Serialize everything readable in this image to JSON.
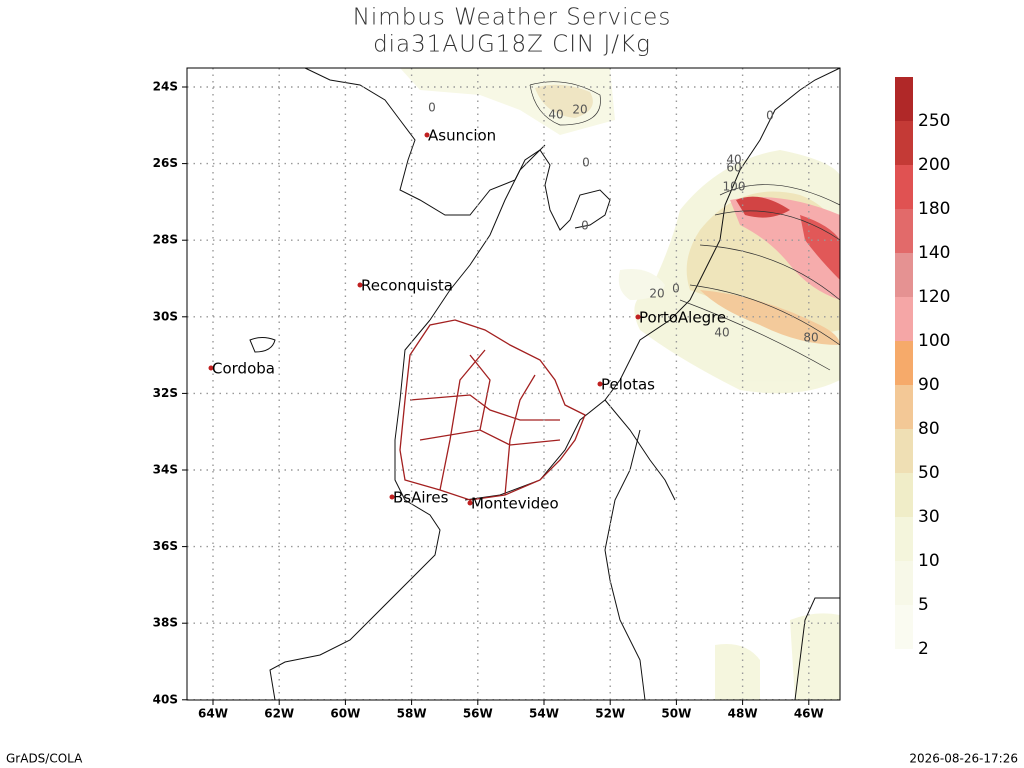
{
  "header": {
    "title": "Nimbus Weather Services",
    "subtitle": "dia31AUG18Z CIN J/Kg"
  },
  "map": {
    "lat_ticks": [
      "24S",
      "26S",
      "28S",
      "30S",
      "32S",
      "34S",
      "36S",
      "38S",
      "40S"
    ],
    "lon_ticks": [
      "64W",
      "62W",
      "60W",
      "58W",
      "56W",
      "54W",
      "52W",
      "50W",
      "48W",
      "46W"
    ],
    "cities": [
      "Asuncion",
      "Reconquista",
      "Cordoba",
      "PortoAlegre",
      "Pelotas",
      "BsAires",
      "Montevideo"
    ],
    "contour_labels": [
      "0",
      "40",
      "20",
      "0",
      "0",
      "0",
      "40",
      "60",
      "100",
      "20",
      "0",
      "40",
      "80"
    ]
  },
  "colorbar": {
    "colors": [
      "#b02828",
      "#c43a36",
      "#e05252",
      "#e26a6a",
      "#e59292",
      "#f5a6a6",
      "#f6aa6a",
      "#f3c896",
      "#efdfb4",
      "#f0edc8",
      "#f4f5dc",
      "#f7f8e8",
      "#fafbf1"
    ],
    "labels": [
      "250",
      "200",
      "180",
      "140",
      "120",
      "100",
      "90",
      "80",
      "50",
      "30",
      "10",
      "5",
      "2"
    ]
  },
  "footer": {
    "left": "GrADS/COLA",
    "right": "2026-08-26-17:26"
  }
}
